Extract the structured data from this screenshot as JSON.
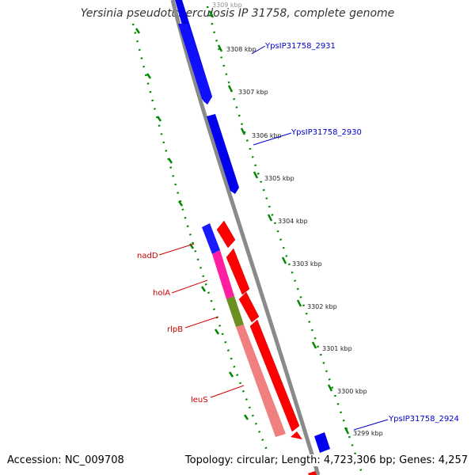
{
  "title": "Yersinia pseudotuberculosis IP 31758, complete genome",
  "footer": {
    "accession": "Accession: NC_009708",
    "summary": "Topology: circular; Length: 4,723,306 bp; Genes: 4,257"
  },
  "ticks": [
    "3309 kbp",
    "3308 kbp",
    "3307 kbp",
    "3306 kbp",
    "3305 kbp",
    "3304 kbp",
    "3303 kbp",
    "3302 kbp",
    "3301 kbp",
    "3300 kbp",
    "3299 kbp"
  ],
  "genes": {
    "outer": [
      "YpsIP31758_2931",
      "YpsIP31758_2930",
      "YpsIP31758_2924"
    ],
    "inner": [
      "nadD",
      "holA",
      "rlpB",
      "leuS"
    ]
  },
  "colors": {
    "forward_gene": "#0000ee",
    "reverse_gene": "#ff0000",
    "backbone": "#808080",
    "dotted_track": "#008800",
    "nadD": "#1a1aff",
    "holA": "#ff1fa0",
    "rlpB": "#6b8e23",
    "leuS": "#f08080"
  }
}
